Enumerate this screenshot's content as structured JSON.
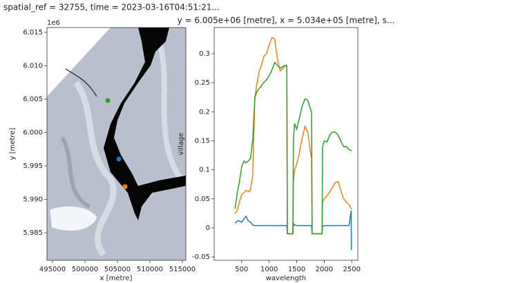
{
  "chart_data": [
    {
      "type": "scatter",
      "title": "spatial_ref = 32755, time = 2023-03-16T04:51:21...",
      "x_label": "x [metre]",
      "y_label": "y [metre]",
      "y_offset_label": "1e6",
      "xlim": [
        494150,
        515530
      ],
      "xticks": [
        495000,
        500000,
        505000,
        510000,
        515000
      ],
      "ylim": [
        5980880,
        6015720
      ],
      "yticks": [
        {
          "value": 5985000,
          "label": "5.985"
        },
        {
          "value": 5990000,
          "label": "5.990"
        },
        {
          "value": 5995000,
          "label": "5.995"
        },
        {
          "value": 6000000,
          "label": "6.000"
        },
        {
          "value": 6005000,
          "label": "6.005"
        },
        {
          "value": 6010000,
          "label": "6.010"
        },
        {
          "value": 6015000,
          "label": "6.015"
        }
      ],
      "series": [
        {
          "color": "#1f77b4",
          "x": [
            505213
          ],
          "values": [
            5996030
          ]
        },
        {
          "color": "#ff7f0e",
          "x": [
            506170
          ],
          "values": [
            5991900
          ]
        },
        {
          "color": "#2ca02c",
          "x": [
            503511
          ],
          "values": [
            6004790
          ]
        }
      ]
    },
    {
      "type": "line",
      "title": "y = 6.005e+06 [metre], x = 5.034e+05 [metre], s...",
      "x_label": "wavelength",
      "y_label": "village",
      "xlim": [
        0,
        2610
      ],
      "xticks": [
        500,
        1000,
        1500,
        2000,
        2500
      ],
      "ylim": [
        -0.0557,
        0.345
      ],
      "yticks": [
        -0.05,
        0.0,
        0.05,
        0.1,
        0.15,
        0.2,
        0.25,
        0.3
      ],
      "x": [
        380,
        420,
        460,
        500,
        540,
        580,
        620,
        660,
        700,
        740,
        780,
        820,
        860,
        900,
        950,
        1000,
        1050,
        1100,
        1150,
        1200,
        1250,
        1300,
        1320,
        1330,
        1430,
        1440,
        1460,
        1500,
        1550,
        1600,
        1650,
        1700,
        1750,
        1770,
        1780,
        1960,
        1970,
        2000,
        2050,
        2100,
        2150,
        2200,
        2250,
        2300,
        2350,
        2400,
        2450,
        2490,
        2493
      ],
      "series": [
        {
          "color": "#1f77b4",
          "values": [
            0.008,
            0.012,
            0.012,
            0.01,
            0.015,
            0.02,
            0.012,
            0.01,
            0.005,
            0.004,
            0.004,
            0.004,
            0.004,
            0.004,
            0.004,
            0.004,
            0.004,
            0.004,
            0.004,
            0.004,
            0.004,
            0.004,
            0.004,
            -0.01,
            -0.01,
            0.008,
            0.005,
            0.004,
            0.004,
            0.004,
            0.004,
            0.004,
            0.004,
            0.004,
            -0.01,
            -0.01,
            0.003,
            0.004,
            0.004,
            0.004,
            0.004,
            0.004,
            0.004,
            0.004,
            0.004,
            0.004,
            0.004,
            0.03,
            -0.038
          ]
        },
        {
          "color": "#ff7f0e",
          "values": [
            0.025,
            0.03,
            0.045,
            0.058,
            0.06,
            0.065,
            0.062,
            0.065,
            0.09,
            0.225,
            0.25,
            0.27,
            0.28,
            0.295,
            0.3,
            0.315,
            0.328,
            0.325,
            0.29,
            0.27,
            0.275,
            0.28,
            0.28,
            -0.01,
            -0.01,
            0.08,
            0.1,
            0.11,
            0.13,
            0.155,
            0.175,
            0.165,
            0.13,
            0.12,
            -0.01,
            -0.01,
            0.045,
            0.05,
            0.055,
            0.062,
            0.07,
            0.078,
            0.08,
            0.065,
            0.05,
            0.045,
            0.04,
            0.033,
            0.032
          ]
        },
        {
          "color": "#2ca02c",
          "values": [
            0.033,
            0.06,
            0.08,
            0.105,
            0.115,
            0.112,
            0.115,
            0.12,
            0.15,
            0.225,
            0.235,
            0.24,
            0.245,
            0.25,
            0.255,
            0.262,
            0.272,
            0.285,
            0.28,
            0.275,
            0.278,
            0.28,
            0.28,
            -0.01,
            -0.01,
            0.15,
            0.18,
            0.17,
            0.19,
            0.21,
            0.222,
            0.22,
            0.205,
            0.2,
            -0.01,
            -0.01,
            0.14,
            0.15,
            0.148,
            0.16,
            0.165,
            0.165,
            0.16,
            0.15,
            0.14,
            0.14,
            0.135,
            0.133,
            0.132
          ]
        }
      ]
    }
  ]
}
